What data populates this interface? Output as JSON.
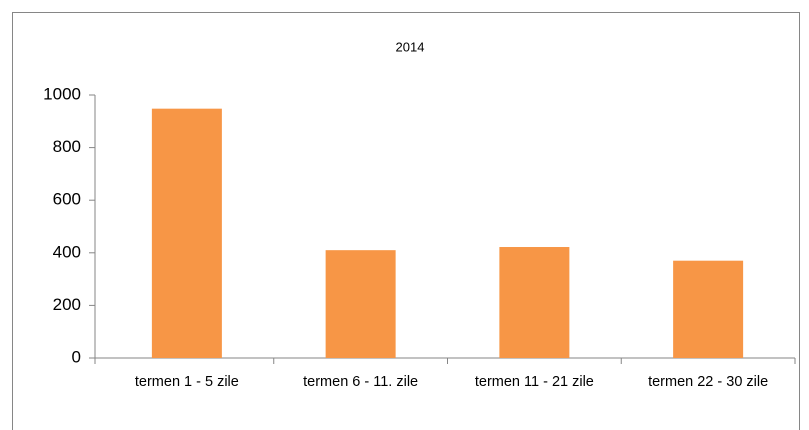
{
  "chart_data": {
    "type": "bar",
    "title": "2014",
    "categories": [
      "termen 1 - 5 zile",
      "termen 6 - 11. zile",
      "termen 11  - 21 zile",
      "termen 22 - 30 zile"
    ],
    "values": [
      948,
      410,
      422,
      370
    ],
    "color": "#f79646",
    "ylim": [
      0,
      1000
    ],
    "yticks": [
      0,
      200,
      400,
      600,
      800,
      1000
    ],
    "grid": false
  }
}
